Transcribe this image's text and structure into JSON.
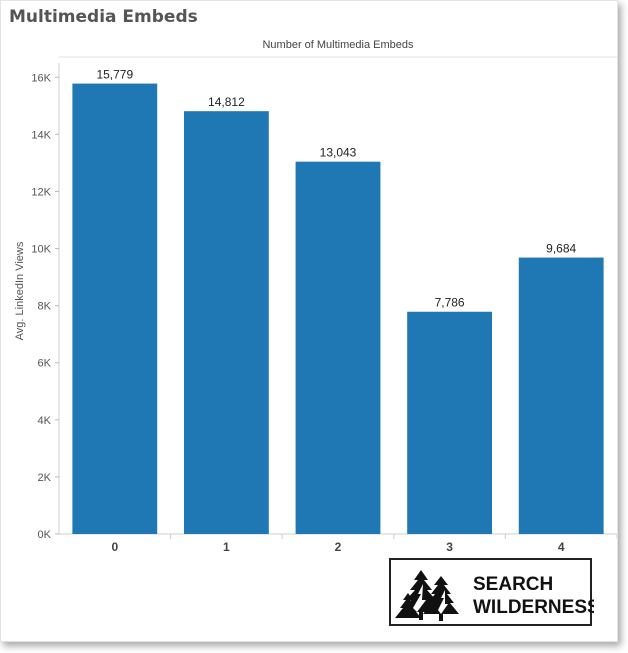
{
  "page": {
    "title": "Multimedia Embeds"
  },
  "chart_data": {
    "type": "bar",
    "title": "Number of Multimedia Embeds",
    "xlabel": "",
    "ylabel": "Avg. LinkedIn Views",
    "categories": [
      "0",
      "1",
      "2",
      "3",
      "4"
    ],
    "values": [
      15779,
      14812,
      13043,
      7786,
      9684
    ],
    "value_labels": [
      "15,779",
      "14,812",
      "13,043",
      "7,786",
      "9,684"
    ],
    "ylim": [
      0,
      16500
    ],
    "yticks": [
      0,
      2000,
      4000,
      6000,
      8000,
      10000,
      12000,
      14000,
      16000
    ],
    "ytick_labels": [
      "0K",
      "2K",
      "4K",
      "6K",
      "8K",
      "10K",
      "12K",
      "14K",
      "16K"
    ],
    "bar_color": "#1f77b4",
    "grid": false,
    "legend": "none"
  },
  "logo": {
    "line1": "SEARCH",
    "line2": "WILDERNESS"
  }
}
